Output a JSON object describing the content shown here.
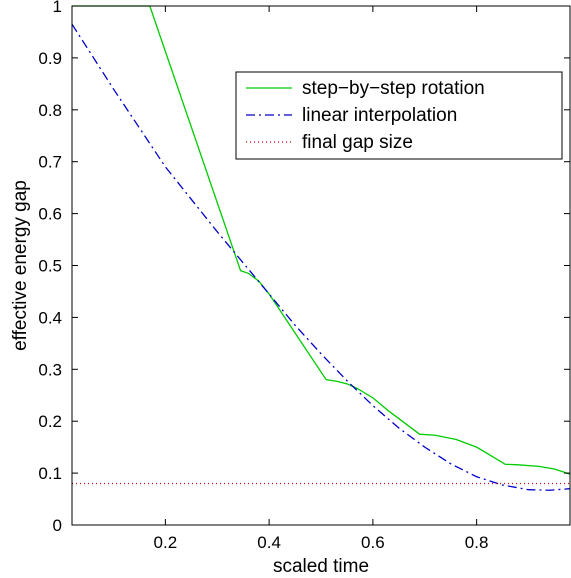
{
  "chart_data": {
    "type": "line",
    "title": "",
    "xlabel": "scaled time",
    "ylabel": "effective energy gap",
    "xlim": [
      0.02,
      0.98
    ],
    "ylim": [
      0,
      1
    ],
    "xticks": [
      0.2,
      0.4,
      0.6,
      0.8
    ],
    "xtick_labels": [
      "0.2",
      "0.4",
      "0.6",
      "0.8"
    ],
    "yticks": [
      0,
      0.1,
      0.2,
      0.3,
      0.4,
      0.5,
      0.6,
      0.7,
      0.8,
      0.9,
      1
    ],
    "ytick_labels": [
      "0",
      "0.1",
      "0.2",
      "0.3",
      "0.4",
      "0.5",
      "0.6",
      "0.7",
      "0.8",
      "0.9",
      "1"
    ],
    "grid": false,
    "legend_position": "top-right",
    "series": [
      {
        "name": "step−by−step rotation",
        "color": "#00cc00",
        "style": "solid",
        "x": [
          0.02,
          0.17,
          0.345,
          0.36,
          0.38,
          0.4,
          0.43,
          0.51,
          0.53,
          0.55,
          0.57,
          0.6,
          0.63,
          0.69,
          0.72,
          0.76,
          0.8,
          0.83,
          0.855,
          0.88,
          0.92,
          0.95,
          0.98
        ],
        "y": [
          1.0,
          1.0,
          0.49,
          0.485,
          0.47,
          0.445,
          0.4,
          0.28,
          0.277,
          0.272,
          0.263,
          0.245,
          0.22,
          0.175,
          0.173,
          0.165,
          0.15,
          0.132,
          0.117,
          0.116,
          0.113,
          0.108,
          0.098
        ]
      },
      {
        "name": "linear interpolation",
        "color": "#0000cc",
        "style": "dashdot",
        "x": [
          0.02,
          0.1,
          0.2,
          0.3,
          0.35,
          0.4,
          0.45,
          0.5,
          0.55,
          0.6,
          0.65,
          0.7,
          0.75,
          0.8,
          0.85,
          0.9,
          0.94,
          0.98
        ],
        "y": [
          0.965,
          0.84,
          0.69,
          0.565,
          0.505,
          0.445,
          0.385,
          0.33,
          0.278,
          0.23,
          0.187,
          0.15,
          0.118,
          0.093,
          0.077,
          0.068,
          0.067,
          0.07
        ]
      },
      {
        "name": "final gap size",
        "color": "#cc0000",
        "style": "dotted",
        "x": [
          0.02,
          0.98
        ],
        "y": [
          0.08,
          0.08
        ]
      }
    ]
  }
}
